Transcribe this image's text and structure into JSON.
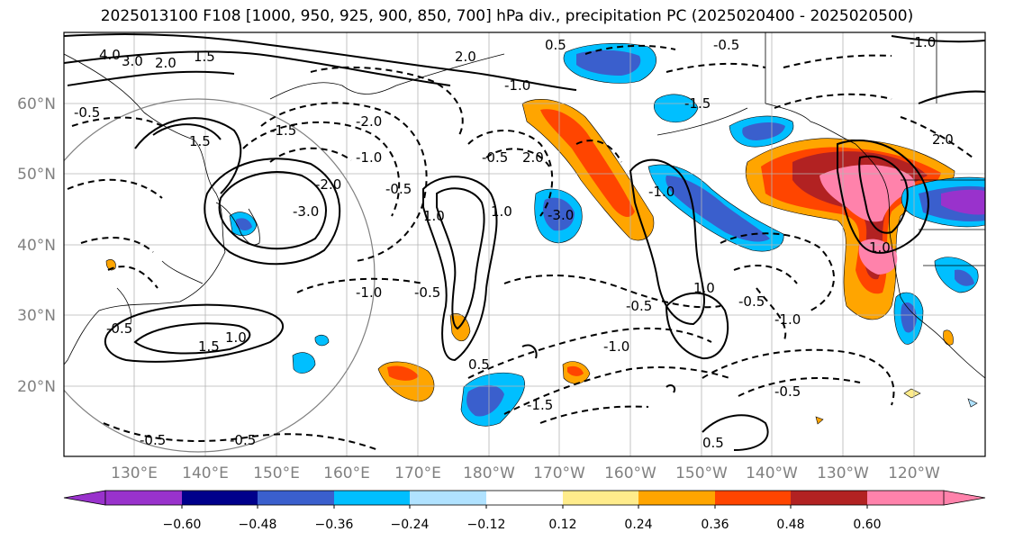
{
  "title": "2025013100 F108 [1000, 950, 925, 900, 850, 700] hPa div., precipitation PC (2025020400 - 2025020500)",
  "map": {
    "lat_labels": [
      "60°N",
      "50°N",
      "40°N",
      "30°N",
      "20°N"
    ],
    "lon_labels": [
      "130°E",
      "140°E",
      "150°E",
      "160°E",
      "170°E",
      "180°W",
      "170°W",
      "160°W",
      "150°W",
      "140°W",
      "130°W",
      "120°W"
    ],
    "contour_labels": [
      "4.0",
      "3.0",
      "2.0",
      "1.5",
      "-0.5",
      "-1.5",
      "-2.0",
      "-1.0",
      "-0.5",
      "-2.0",
      "-3.0",
      "2.0",
      "-1.0",
      "0.5",
      "1.0",
      "1.5",
      "-0.5",
      "1.0",
      "-0.5",
      "-1.0",
      "-3.0",
      "-1.0",
      "-1.5",
      "0.5",
      "1.0",
      "-0.5",
      "-1.0",
      "2.0",
      "1.5",
      "-1.5",
      "-0.5",
      "0.5",
      "-0.5",
      "1.0",
      "-0.5",
      "-1.0",
      "-0.5",
      "2.0",
      "1.0",
      "-1.0",
      "-0.5",
      "-0.5"
    ]
  },
  "colorbar": {
    "labels": [
      "−0.60",
      "−0.48",
      "−0.36",
      "−0.24",
      "−0.12",
      "0.12",
      "0.24",
      "0.36",
      "0.48",
      "0.60"
    ],
    "colors": [
      "#9932cc",
      "#00008b",
      "#3a5fcd",
      "#00bfff",
      "#b0e2ff",
      "#ffffff",
      "#ffec8b",
      "#ffa500",
      "#ff4500",
      "#b22222",
      "#ff82ab"
    ]
  }
}
